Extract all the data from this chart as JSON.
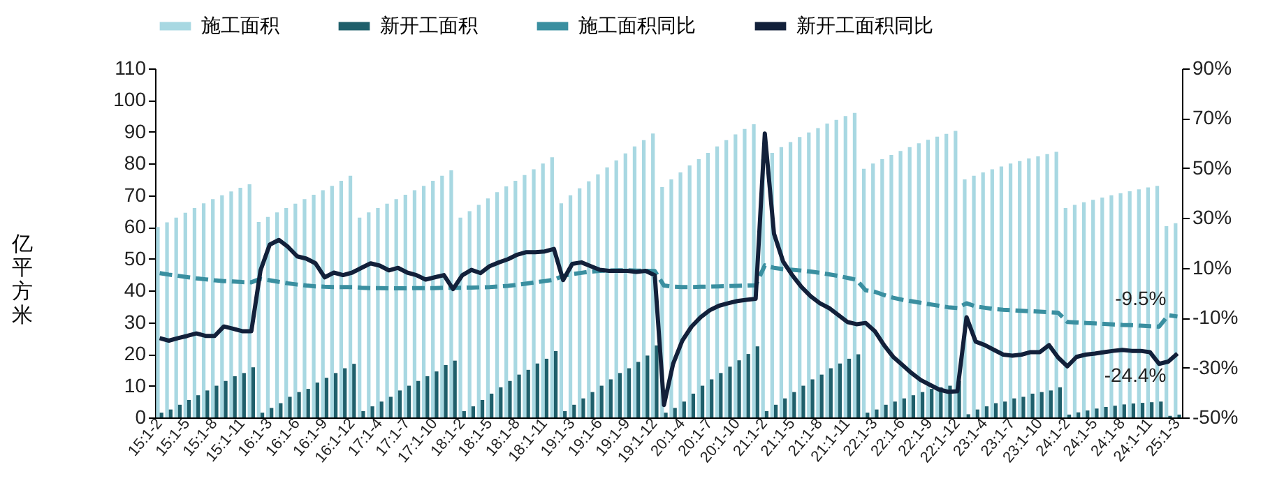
{
  "chart_data": {
    "type": "bar",
    "ylabel": "亿平方米",
    "legend": "top",
    "categories": [
      "15:1-2",
      null,
      null,
      "15:1-5",
      null,
      null,
      "15:1-8",
      null,
      null,
      "15:1-11",
      null,
      null,
      "16:1-3",
      null,
      null,
      "16:1-6",
      null,
      null,
      "16:1-9",
      null,
      null,
      "16:1-12",
      null,
      null,
      "17:1-4",
      null,
      null,
      "17:1-7",
      null,
      null,
      "17:1-10",
      null,
      null,
      "18:1-2",
      null,
      null,
      "18:1-5",
      null,
      null,
      "18:1-8",
      null,
      null,
      "18:1-11",
      null,
      null,
      "19:1-3",
      null,
      null,
      "19:1-6",
      null,
      null,
      "19:1-9",
      null,
      null,
      "19:1-12",
      null,
      null,
      "20:1-4",
      null,
      null,
      "20:1-7",
      null,
      null,
      "20:1-10",
      null,
      null,
      "21:1-2",
      null,
      null,
      "21:1-5",
      null,
      null,
      "21:1-8",
      null,
      null,
      "21:1-11",
      null,
      null,
      "22:1-3",
      null,
      null,
      "22:1-6",
      null,
      null,
      "22:1-9",
      null,
      null,
      "22:1-12",
      null,
      null,
      "23:1-4",
      null,
      null,
      "23:1-7",
      null,
      null,
      "23:1-10",
      null,
      null,
      "24:1-2",
      null,
      null,
      "24:1-5",
      null,
      null,
      "24:1-8",
      null,
      null,
      "24:1-11",
      null,
      null,
      "25:1-3"
    ],
    "ylim": [
      0,
      110
    ],
    "yticks": [
      0,
      10,
      20,
      30,
      40,
      50,
      60,
      70,
      80,
      90,
      100,
      110
    ],
    "y2lim": [
      -50,
      90
    ],
    "y2ticks": [
      {
        "value": -50,
        "label": "-50%"
      },
      {
        "value": -30,
        "label": "-30%"
      },
      {
        "value": -10,
        "label": "-10%"
      },
      {
        "value": 10,
        "label": "10%"
      },
      {
        "value": 30,
        "label": "30%"
      },
      {
        "value": 50,
        "label": "50%"
      },
      {
        "value": 70,
        "label": "70%"
      },
      {
        "value": 90,
        "label": "90%"
      }
    ],
    "series": [
      {
        "name": "施工面积",
        "color": "#a8d8e2",
        "values": [
          60.0,
          61.5,
          63.0,
          64.5,
          66.0,
          67.5,
          68.8,
          70.0,
          71.2,
          72.4,
          73.5,
          61.6,
          63.2,
          64.6,
          66.0,
          67.4,
          68.8,
          70.2,
          71.6,
          73.0,
          74.6,
          76.2,
          63.0,
          64.6,
          66.0,
          67.4,
          68.8,
          70.2,
          71.6,
          73.0,
          74.6,
          76.2,
          77.9,
          63.0,
          65.0,
          67.0,
          69.0,
          71.0,
          72.8,
          74.6,
          76.4,
          78.2,
          80.0,
          82.0,
          67.5,
          70.0,
          72.2,
          74.4,
          76.6,
          78.8,
          81.0,
          83.2,
          85.4,
          87.4,
          89.5,
          72.6,
          75.0,
          77.2,
          79.4,
          81.4,
          83.4,
          85.4,
          87.4,
          89.2,
          90.9,
          92.4,
          81.4,
          83.4,
          85.2,
          86.8,
          88.4,
          89.8,
          91.2,
          92.6,
          93.8,
          95.0,
          96.0,
          78.4,
          80.0,
          81.4,
          82.7,
          84.0,
          85.2,
          86.4,
          87.5,
          88.5,
          89.4,
          90.3,
          75.0,
          76.2,
          77.2,
          78.2,
          79.1,
          80.0,
          80.8,
          81.6,
          82.3,
          83.0,
          83.7,
          66.0,
          67.0,
          67.8,
          68.6,
          69.3,
          70.0,
          70.7,
          71.3,
          71.9,
          72.5,
          73.0,
          60.3,
          61.2
        ]
      },
      {
        "name": "新开工面积",
        "color": "#1f5f6b",
        "values": [
          1.5,
          2.5,
          4.0,
          5.5,
          7.0,
          8.5,
          10.0,
          11.5,
          13.0,
          14.0,
          15.8,
          1.5,
          3.0,
          4.5,
          6.5,
          8.0,
          9.0,
          11.0,
          12.5,
          14.0,
          15.5,
          16.9,
          2.0,
          3.5,
          5.0,
          6.5,
          8.5,
          10.0,
          11.5,
          13.0,
          14.5,
          16.5,
          17.9,
          2.0,
          3.5,
          5.5,
          7.5,
          9.5,
          11.5,
          13.5,
          15.0,
          17.0,
          18.5,
          20.9,
          2.0,
          4.0,
          6.0,
          8.0,
          10.0,
          12.0,
          14.0,
          15.5,
          17.5,
          19.5,
          22.7,
          1.5,
          3.0,
          5.0,
          7.5,
          10.0,
          12.0,
          14.0,
          16.0,
          18.0,
          20.0,
          22.4,
          2.0,
          4.0,
          6.0,
          8.0,
          10.0,
          12.0,
          13.5,
          15.5,
          17.0,
          18.5,
          19.9,
          1.5,
          2.5,
          4.0,
          5.0,
          6.0,
          7.0,
          8.0,
          9.0,
          9.5,
          10.0,
          11.5,
          1.0,
          2.5,
          3.5,
          4.5,
          5.0,
          6.0,
          6.5,
          7.5,
          8.0,
          8.5,
          9.5,
          0.9,
          1.6,
          2.2,
          2.8,
          3.3,
          3.7,
          4.1,
          4.4,
          4.6,
          4.8,
          5.0,
          0.5,
          0.9
        ]
      },
      {
        "name": "施工面积同比",
        "type": "line",
        "axis": "y2",
        "line_style": "dashed",
        "color": "#3a8fa0",
        "values": [
          7.9,
          7.3,
          6.8,
          6.3,
          5.8,
          5.4,
          5.0,
          4.7,
          4.5,
          4.3,
          4.2,
          5.6,
          5.0,
          4.4,
          3.8,
          3.3,
          2.9,
          2.6,
          2.4,
          2.3,
          2.3,
          2.3,
          2.0,
          1.9,
          1.9,
          1.8,
          1.8,
          1.8,
          1.9,
          1.9,
          1.9,
          2.0,
          2.0,
          2.0,
          2.1,
          2.2,
          2.3,
          2.5,
          2.8,
          3.2,
          3.7,
          4.2,
          4.7,
          5.2,
          6.8,
          7.5,
          8.0,
          8.5,
          8.8,
          8.9,
          9.0,
          9.0,
          8.9,
          8.8,
          8.7,
          2.9,
          2.5,
          2.3,
          2.3,
          2.4,
          2.5,
          2.6,
          2.7,
          2.8,
          2.9,
          3.0,
          11.0,
          10.0,
          9.5,
          9.2,
          8.9,
          8.5,
          8.0,
          7.4,
          6.8,
          6.0,
          5.2,
          1.0,
          0.4,
          -0.9,
          -2.0,
          -2.8,
          -3.4,
          -4.0,
          -4.6,
          -5.2,
          -5.8,
          -6.1,
          -4.2,
          -5.5,
          -6.0,
          -6.5,
          -6.8,
          -7.0,
          -7.2,
          -7.4,
          -7.6,
          -7.8,
          -8.0,
          -11.7,
          -11.9,
          -12.1,
          -12.3,
          -12.5,
          -12.7,
          -12.9,
          -13.0,
          -13.2,
          -13.4,
          -13.6,
          -9.0,
          -9.5
        ],
        "value_labels": [
          null,
          null,
          null,
          null,
          null,
          null,
          null,
          null,
          null,
          null,
          null,
          null,
          null,
          null,
          null,
          null,
          null,
          null,
          null,
          null,
          null,
          null,
          null,
          null,
          null,
          null,
          null,
          null,
          null,
          null,
          null,
          null,
          null,
          null,
          null,
          null,
          null,
          null,
          null,
          null,
          null,
          null,
          null,
          null,
          null,
          null,
          null,
          null,
          null,
          null,
          null,
          null,
          null,
          null,
          null,
          null,
          null,
          null,
          null,
          null,
          null,
          null,
          null,
          null,
          null,
          null,
          null,
          null,
          null,
          null,
          null,
          null,
          null,
          null,
          null,
          null,
          null,
          null,
          null,
          null,
          null,
          null,
          null,
          null,
          null,
          null,
          null,
          null,
          null,
          null,
          null,
          null,
          null,
          null,
          null,
          null,
          null,
          null,
          null,
          null,
          null,
          null,
          null,
          null,
          null,
          null,
          null,
          null,
          null,
          null,
          null,
          "-9.5%"
        ]
      },
      {
        "name": "新开工面积同比",
        "type": "line",
        "axis": "y2",
        "line_style": "solid",
        "color": "#12203a",
        "values": [
          -18.2,
          -19.2,
          -18.2,
          -17.3,
          -16.3,
          -17.3,
          -17.3,
          -13.5,
          -14.4,
          -15.4,
          -15.4,
          9.0,
          19.3,
          21.2,
          18.4,
          14.6,
          13.7,
          11.8,
          6.2,
          8.1,
          7.1,
          8.1,
          10.0,
          11.8,
          10.9,
          9.0,
          10.0,
          8.1,
          7.1,
          5.3,
          6.2,
          7.1,
          1.5,
          7.0,
          9.2,
          7.9,
          10.7,
          12.2,
          13.5,
          15.3,
          16.3,
          16.3,
          16.6,
          17.6,
          5.1,
          11.6,
          12.2,
          10.7,
          9.2,
          8.8,
          8.8,
          8.8,
          8.4,
          8.8,
          7.0,
          -45.0,
          -28.5,
          -19.2,
          -13.6,
          -9.8,
          -7.0,
          -5.2,
          -4.2,
          -3.3,
          -2.8,
          -2.4,
          63.9,
          23.7,
          12.5,
          7.0,
          2.3,
          -1.4,
          -4.2,
          -6.1,
          -8.9,
          -11.7,
          -12.6,
          -12.1,
          -15.4,
          -21.0,
          -25.7,
          -28.9,
          -32.2,
          -35.0,
          -36.9,
          -38.8,
          -39.7,
          -39.5,
          -9.8,
          -19.6,
          -21.0,
          -22.9,
          -24.8,
          -25.2,
          -24.8,
          -23.8,
          -23.8,
          -21.0,
          -26.0,
          -29.5,
          -25.7,
          -24.8,
          -24.4,
          -23.8,
          -23.3,
          -22.9,
          -23.3,
          -23.3,
          -23.8,
          -28.5,
          -27.6,
          -24.4
        ],
        "value_labels": [
          null,
          null,
          null,
          null,
          null,
          null,
          null,
          null,
          null,
          null,
          null,
          null,
          null,
          null,
          null,
          null,
          null,
          null,
          null,
          null,
          null,
          null,
          null,
          null,
          null,
          null,
          null,
          null,
          null,
          null,
          null,
          null,
          null,
          null,
          null,
          null,
          null,
          null,
          null,
          null,
          null,
          null,
          null,
          null,
          null,
          null,
          null,
          null,
          null,
          null,
          null,
          null,
          null,
          null,
          null,
          null,
          null,
          null,
          null,
          null,
          null,
          null,
          null,
          null,
          null,
          null,
          null,
          null,
          null,
          null,
          null,
          null,
          null,
          null,
          null,
          null,
          null,
          null,
          null,
          null,
          null,
          null,
          null,
          null,
          null,
          null,
          null,
          null,
          null,
          null,
          null,
          null,
          null,
          null,
          null,
          null,
          null,
          null,
          null,
          null,
          null,
          null,
          null,
          null,
          null,
          null,
          null,
          null,
          null,
          null,
          null,
          "-24.4%"
        ]
      }
    ]
  }
}
